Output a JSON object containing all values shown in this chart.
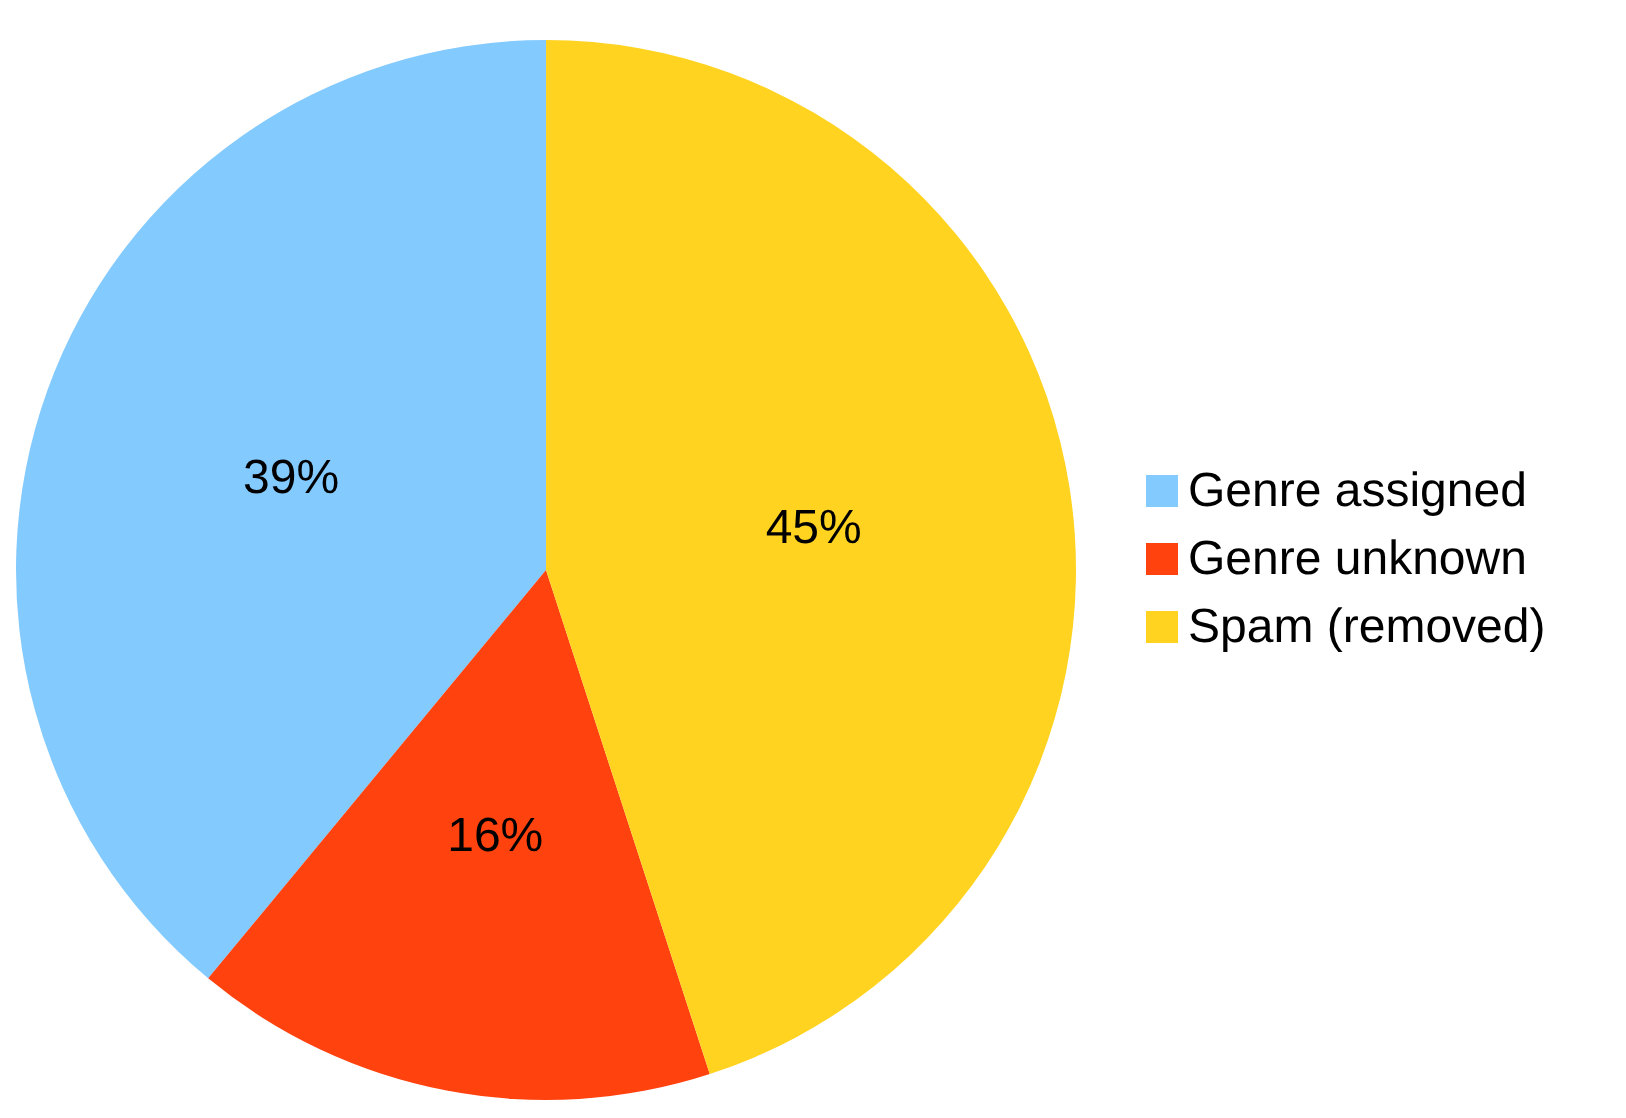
{
  "chart_data": {
    "type": "pie",
    "categories": [
      "Genre assigned",
      "Genre unknown",
      "Spam (removed)"
    ],
    "values": [
      39,
      16,
      45
    ],
    "colors": [
      "#83caff",
      "#ff420e",
      "#ffd320"
    ],
    "value_labels": [
      "39%",
      "16%",
      "45%"
    ],
    "legend": "right"
  }
}
